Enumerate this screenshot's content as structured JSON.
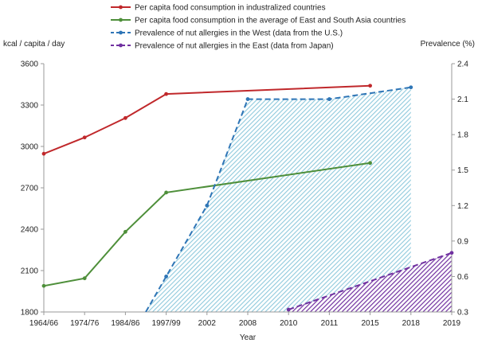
{
  "chart_data": {
    "type": "line",
    "categories": [
      "1964/66",
      "1974/76",
      "1984/86",
      "1997/99",
      "2002",
      "2008",
      "2010",
      "2011",
      "2015",
      "2018",
      "2019"
    ],
    "xlabel": "Year",
    "y_left": {
      "label": "kcal / capita / day",
      "ticks": [
        "1800",
        "2100",
        "2400",
        "2700",
        "3000",
        "3300",
        "3600"
      ],
      "range": [
        1800,
        3600
      ]
    },
    "y_right": {
      "label": "Prevalence (%)",
      "ticks": [
        "0.3",
        "0.6",
        "0.9",
        "1.2",
        "1.5",
        "1.8",
        "2.1",
        "2.4"
      ],
      "range": [
        0.3,
        2.4
      ]
    },
    "grid": false,
    "legend_position": "top",
    "series": [
      {
        "name": "Per capita food consumption in industralized countries",
        "axis": "left",
        "style": "solid",
        "color": "#c0282b",
        "points": [
          [
            "1964/66",
            2947
          ],
          [
            "1974/76",
            3065
          ],
          [
            "1984/86",
            3206
          ],
          [
            "1997/99",
            3380
          ],
          [
            "2015",
            3440
          ]
        ]
      },
      {
        "name": "Per capita food consumption in the average of East and South Asia countries",
        "axis": "left",
        "style": "solid",
        "color": "#4e8f3a",
        "points": [
          [
            "1964/66",
            1989
          ],
          [
            "1974/76",
            2044
          ],
          [
            "1984/86",
            2381
          ],
          [
            "1997/99",
            2666
          ],
          [
            "2015",
            2880
          ]
        ]
      },
      {
        "name": "Prevalence of nut allergies in the West (data from the U.S.)",
        "axis": "right",
        "style": "dashed",
        "color": "#2e75b6",
        "fill": "hatched",
        "fill_color": "#8fc9dc",
        "points": [
          [
            "1997/99",
            0.6
          ],
          [
            "2002",
            1.2
          ],
          [
            "2008",
            2.1
          ],
          [
            "2011",
            2.1
          ],
          [
            "2018",
            2.2
          ]
        ]
      },
      {
        "name": "Prevalence of nut allergies in the East (data from Japan)",
        "axis": "right",
        "style": "dashed",
        "color": "#7030a0",
        "fill": "hatched",
        "fill_color": "#7030a0",
        "points": [
          [
            "2010",
            0.32
          ],
          [
            "2019",
            0.8
          ]
        ]
      }
    ]
  }
}
